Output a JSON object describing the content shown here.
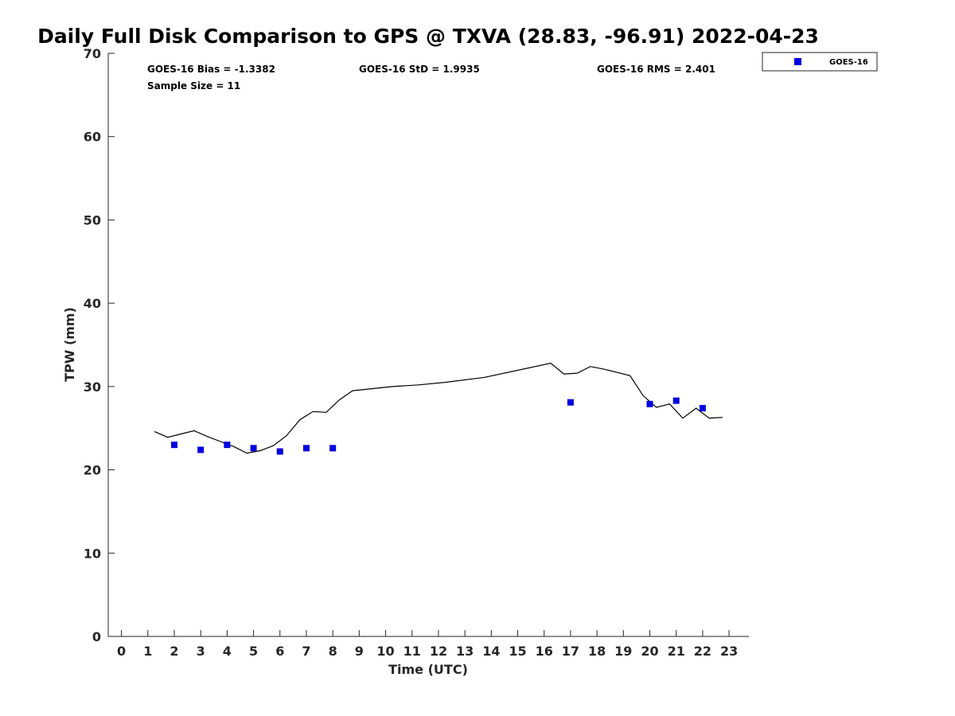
{
  "chart_data": {
    "type": "scatter",
    "title": "Daily Full Disk Comparison to GPS @ TXVA (28.83, -96.91) 2022-04-23",
    "xlabel": "Time (UTC)",
    "ylabel": "TPW (mm)",
    "xlim": [
      -0.5,
      23.75
    ],
    "ylim": [
      0,
      70
    ],
    "x_ticks": [
      0,
      1,
      2,
      3,
      4,
      5,
      6,
      7,
      8,
      9,
      10,
      11,
      12,
      13,
      14,
      15,
      16,
      17,
      18,
      19,
      20,
      21,
      22,
      23
    ],
    "y_ticks": [
      0,
      10,
      20,
      30,
      40,
      50,
      60,
      70
    ],
    "grid": false,
    "legend_position": "top-right",
    "stats": {
      "bias": "GOES-16 Bias = -1.3382",
      "std": "GOES-16 StD = 1.9935",
      "rms": "GOES-16 RMS = 2.401",
      "sample": "Sample Size = 11"
    },
    "series": [
      {
        "name": "GOES-16",
        "kind": "marker",
        "color": "#0000e0",
        "x": [
          2,
          3,
          4,
          5,
          6,
          7,
          8,
          17,
          20,
          21,
          22
        ],
        "y": [
          23.0,
          22.4,
          23.0,
          22.6,
          22.2,
          22.6,
          22.6,
          28.1,
          27.9,
          28.3,
          27.4
        ]
      },
      {
        "kind": "line",
        "color": "#000000",
        "x": [
          1.25,
          1.75,
          2.25,
          2.75,
          3.25,
          3.75,
          4.25,
          4.75,
          5.25,
          5.75,
          6.25,
          6.75,
          7.25,
          7.75,
          8.25,
          8.75,
          10.25,
          11.25,
          12.25,
          13.75,
          16.25,
          16.75,
          17.25,
          17.75,
          18.25,
          19.25,
          19.75,
          20.25,
          20.75,
          21.25,
          21.75,
          22.25,
          22.75
        ],
        "y": [
          24.6,
          23.9,
          24.3,
          24.7,
          24.0,
          23.4,
          22.8,
          22.0,
          22.3,
          22.9,
          24.1,
          26.0,
          27.0,
          26.9,
          28.4,
          29.5,
          30.0,
          30.2,
          30.5,
          31.1,
          32.8,
          31.5,
          31.6,
          32.4,
          32.1,
          31.3,
          28.9,
          27.5,
          27.9,
          26.2,
          27.4,
          26.2,
          26.3
        ]
      }
    ]
  }
}
